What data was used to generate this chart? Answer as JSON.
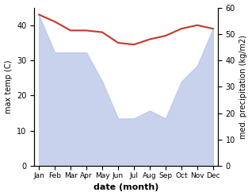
{
  "months": [
    "Jan",
    "Feb",
    "Mar",
    "Apr",
    "May",
    "Jun",
    "Jul",
    "Aug",
    "Sep",
    "Oct",
    "Nov",
    "Dec"
  ],
  "month_indices": [
    0,
    1,
    2,
    3,
    4,
    5,
    6,
    7,
    8,
    9,
    10,
    11
  ],
  "temp_max": [
    43,
    41,
    38.5,
    38.5,
    38,
    35,
    34.5,
    36,
    37,
    39,
    40,
    39
  ],
  "precip": [
    57,
    43,
    43,
    43,
    32,
    18,
    18,
    21,
    18,
    32,
    38,
    52
  ],
  "temp_color": "#c0392b",
  "precip_fill_color": "#b8c4e8",
  "temp_ylim": [
    0,
    45
  ],
  "precip_ylim": [
    0,
    60
  ],
  "temp_yticks": [
    0,
    10,
    20,
    30,
    40
  ],
  "precip_yticks": [
    0,
    10,
    20,
    30,
    40,
    50,
    60
  ],
  "xlabel": "date (month)",
  "ylabel_left": "max temp (C)",
  "ylabel_right": "med. precipitation (kg/m2)",
  "background_color": "#ffffff"
}
